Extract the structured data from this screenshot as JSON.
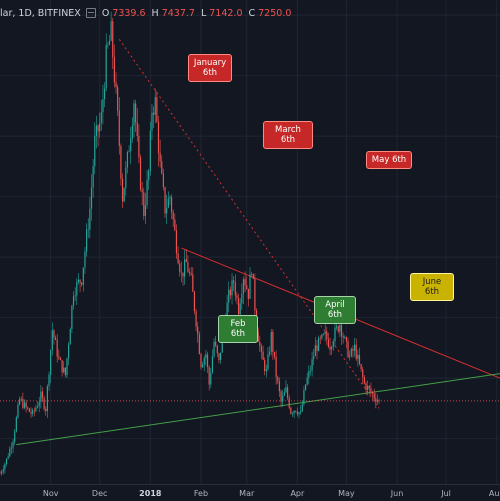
{
  "header": {
    "symbol": "lar, 1D, BITFINEX",
    "ohlc": [
      {
        "k": "O",
        "v": "7339.6"
      },
      {
        "k": "H",
        "v": "7437.7"
      },
      {
        "k": "L",
        "v": "7142.0"
      },
      {
        "k": "C",
        "v": "7250.0"
      }
    ]
  },
  "annotations": {
    "january": "January\n6th",
    "march": "March 6th",
    "may": "May 6th",
    "feb": "Feb 6th",
    "april": "April 6th",
    "june": "June 6th"
  },
  "colors": {
    "background": "#131722",
    "grid": "#1f2533",
    "up": "#26a69a",
    "down": "#ef5350",
    "resistance": "#d32f2f",
    "support": "#43a047"
  },
  "chart_data": {
    "type": "candlestick",
    "x_ticks": [
      {
        "label": "Nov",
        "day": 31
      },
      {
        "label": "Dec",
        "day": 61
      },
      {
        "label": "2018",
        "day": 92,
        "bold": true
      },
      {
        "label": "Feb",
        "day": 123
      },
      {
        "label": "Mar",
        "day": 151
      },
      {
        "label": "Apr",
        "day": 182
      },
      {
        "label": "May",
        "day": 212
      },
      {
        "label": "Jun",
        "day": 243
      },
      {
        "label": "Jul",
        "day": 273
      },
      {
        "label": "Aug",
        "day": 304
      }
    ],
    "x_range_days": [
      0,
      306
    ],
    "y_range": [
      4500,
      20500
    ],
    "path": [
      [
        0,
        4850
      ],
      [
        4,
        5300
      ],
      [
        8,
        6000
      ],
      [
        12,
        7300
      ],
      [
        16,
        7000
      ],
      [
        20,
        6800
      ],
      [
        25,
        7400
      ],
      [
        28,
        7000
      ],
      [
        32,
        9600
      ],
      [
        36,
        8600
      ],
      [
        40,
        8100
      ],
      [
        45,
        10900
      ],
      [
        50,
        11300
      ],
      [
        55,
        13600
      ],
      [
        58,
        15800
      ],
      [
        62,
        16600
      ],
      [
        65,
        18600
      ],
      [
        68,
        19400
      ],
      [
        72,
        16600
      ],
      [
        75,
        14000
      ],
      [
        78,
        15200
      ],
      [
        82,
        17200
      ],
      [
        85,
        15000
      ],
      [
        88,
        13500
      ],
      [
        91,
        14800
      ],
      [
        93,
        16900
      ],
      [
        95,
        17100
      ],
      [
        98,
        15000
      ],
      [
        101,
        13600
      ],
      [
        104,
        14000
      ],
      [
        108,
        12400
      ],
      [
        111,
        11400
      ],
      [
        114,
        11800
      ],
      [
        117,
        11200
      ],
      [
        120,
        9900
      ],
      [
        123,
        8500
      ],
      [
        126,
        8800
      ],
      [
        128,
        7800
      ],
      [
        131,
        9200
      ],
      [
        134,
        8500
      ],
      [
        137,
        9800
      ],
      [
        140,
        10700
      ],
      [
        143,
        11200
      ],
      [
        146,
        10300
      ],
      [
        149,
        11400
      ],
      [
        152,
        10800
      ],
      [
        154,
        11700
      ],
      [
        157,
        9700
      ],
      [
        160,
        8700
      ],
      [
        163,
        8200
      ],
      [
        166,
        9400
      ],
      [
        169,
        8100
      ],
      [
        172,
        7200
      ],
      [
        175,
        7600
      ],
      [
        178,
        6900
      ],
      [
        181,
        7000
      ],
      [
        184,
        6800
      ],
      [
        187,
        7800
      ],
      [
        190,
        8300
      ],
      [
        193,
        9000
      ],
      [
        196,
        9200
      ],
      [
        199,
        9400
      ],
      [
        202,
        9100
      ],
      [
        205,
        9500
      ],
      [
        208,
        9800
      ],
      [
        211,
        9200
      ],
      [
        214,
        8700
      ],
      [
        217,
        9000
      ],
      [
        220,
        8400
      ],
      [
        223,
        7800
      ],
      [
        226,
        7600
      ],
      [
        229,
        7400
      ],
      [
        232,
        7250
      ]
    ],
    "trendlines": [
      {
        "name": "resistance",
        "from": [
          111,
          12300
        ],
        "to": [
          306,
          8000
        ],
        "style": "solid"
      },
      {
        "name": "dotted",
        "from": [
          73,
          19200
        ],
        "to": [
          232,
          7000
        ],
        "style": "dotted"
      },
      {
        "name": "support",
        "from": [
          10,
          5800
        ],
        "to": [
          306,
          8150
        ],
        "style": "solid"
      },
      {
        "name": "price",
        "from": [
          0,
          7250
        ],
        "to": [
          306,
          7250
        ],
        "style": "dashed"
      }
    ]
  }
}
